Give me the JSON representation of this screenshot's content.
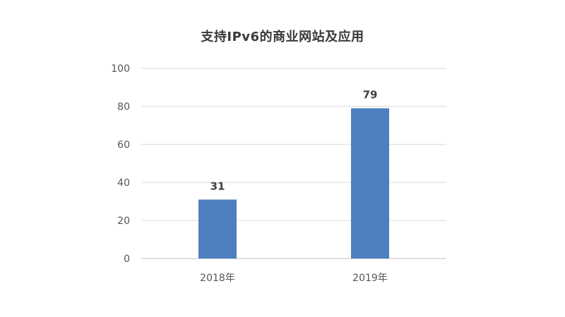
{
  "chart_data": {
    "type": "bar",
    "title": "支持IPv6的商业网站及应用",
    "categories": [
      "2018年",
      "2019年"
    ],
    "values": [
      31,
      79
    ],
    "data_labels": [
      "31",
      "79"
    ],
    "xlabel": "",
    "ylabel": "",
    "ylim": [
      0,
      100
    ],
    "yticks": [
      "0",
      "20",
      "40",
      "60",
      "80",
      "100"
    ],
    "grid": true,
    "legend": "none",
    "bar_color": "#4e7fbf",
    "grid_color": "#d9d9d9",
    "axis_color": "#bfbfbf"
  }
}
